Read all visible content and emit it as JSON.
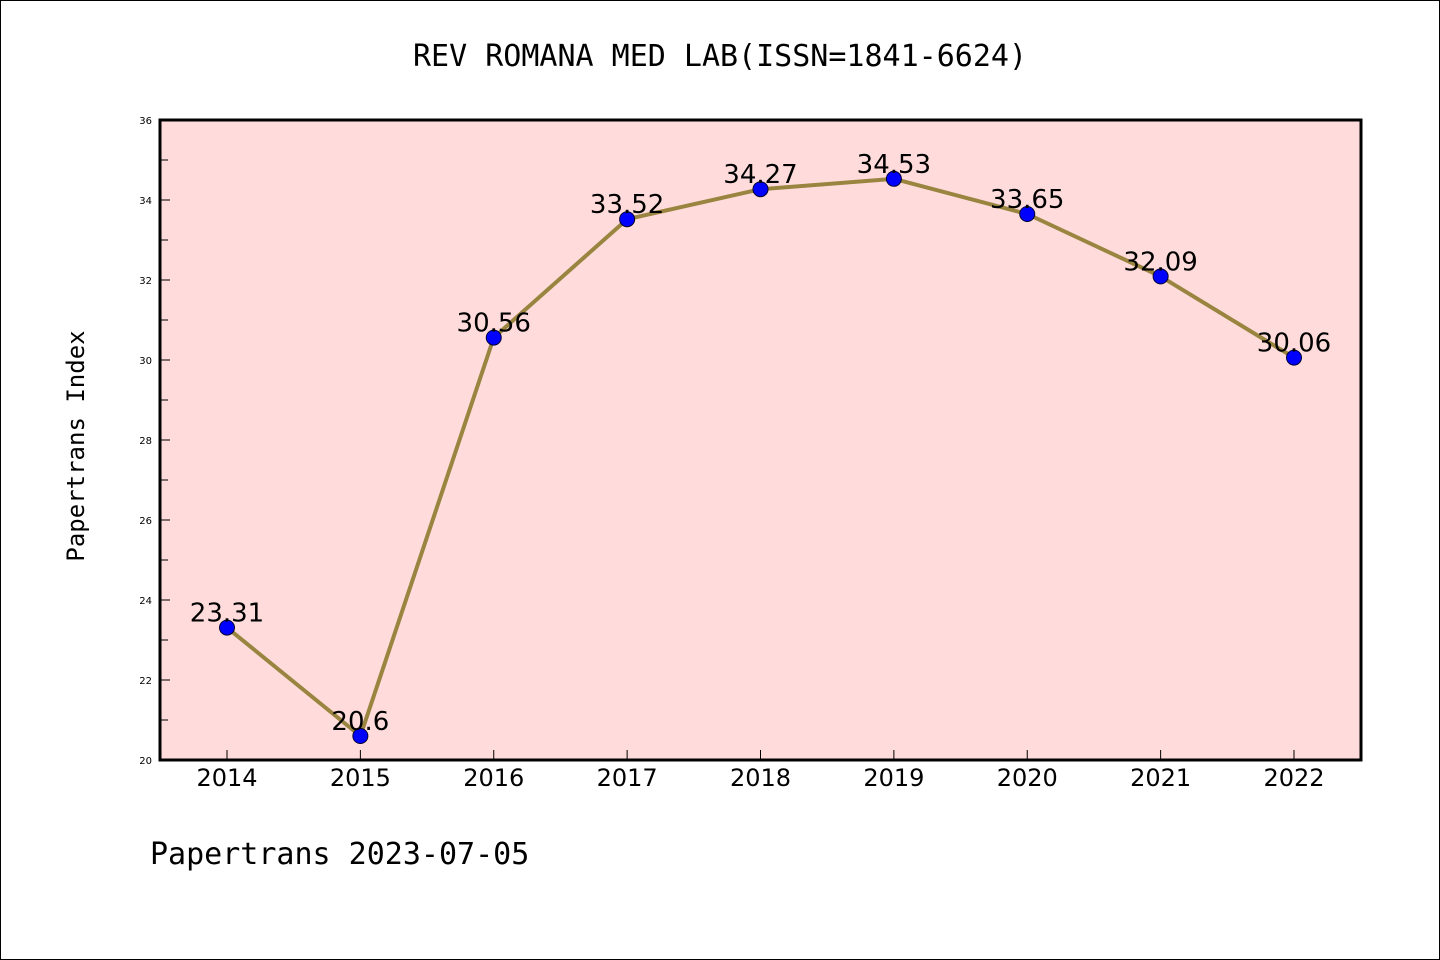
{
  "chart_data": {
    "type": "line",
    "title": "REV ROMANA MED LAB(ISSN=1841-6624)",
    "ylabel": "Papertrans Index",
    "xlabel": "",
    "footer": "Papertrans 2023-07-05",
    "categories": [
      "2014",
      "2015",
      "2016",
      "2017",
      "2018",
      "2019",
      "2020",
      "2021",
      "2022"
    ],
    "series": [
      {
        "values": [
          23.31,
          20.6,
          30.56,
          33.52,
          34.27,
          34.53,
          33.65,
          32.09,
          30.06
        ],
        "labels": [
          "23.31",
          "20.6",
          "30.56",
          "33.52",
          "34.27",
          "34.53",
          "33.65",
          "32.09",
          "30.06"
        ]
      }
    ],
    "ylim": [
      20,
      36
    ],
    "yticks": [
      "20",
      "22",
      "24",
      "26",
      "28",
      "30",
      "32",
      "34",
      "36"
    ],
    "grid": false,
    "colors": {
      "plot_background": "#ffdcdb",
      "line": "#9a8540",
      "marker": "#0000ff"
    }
  }
}
